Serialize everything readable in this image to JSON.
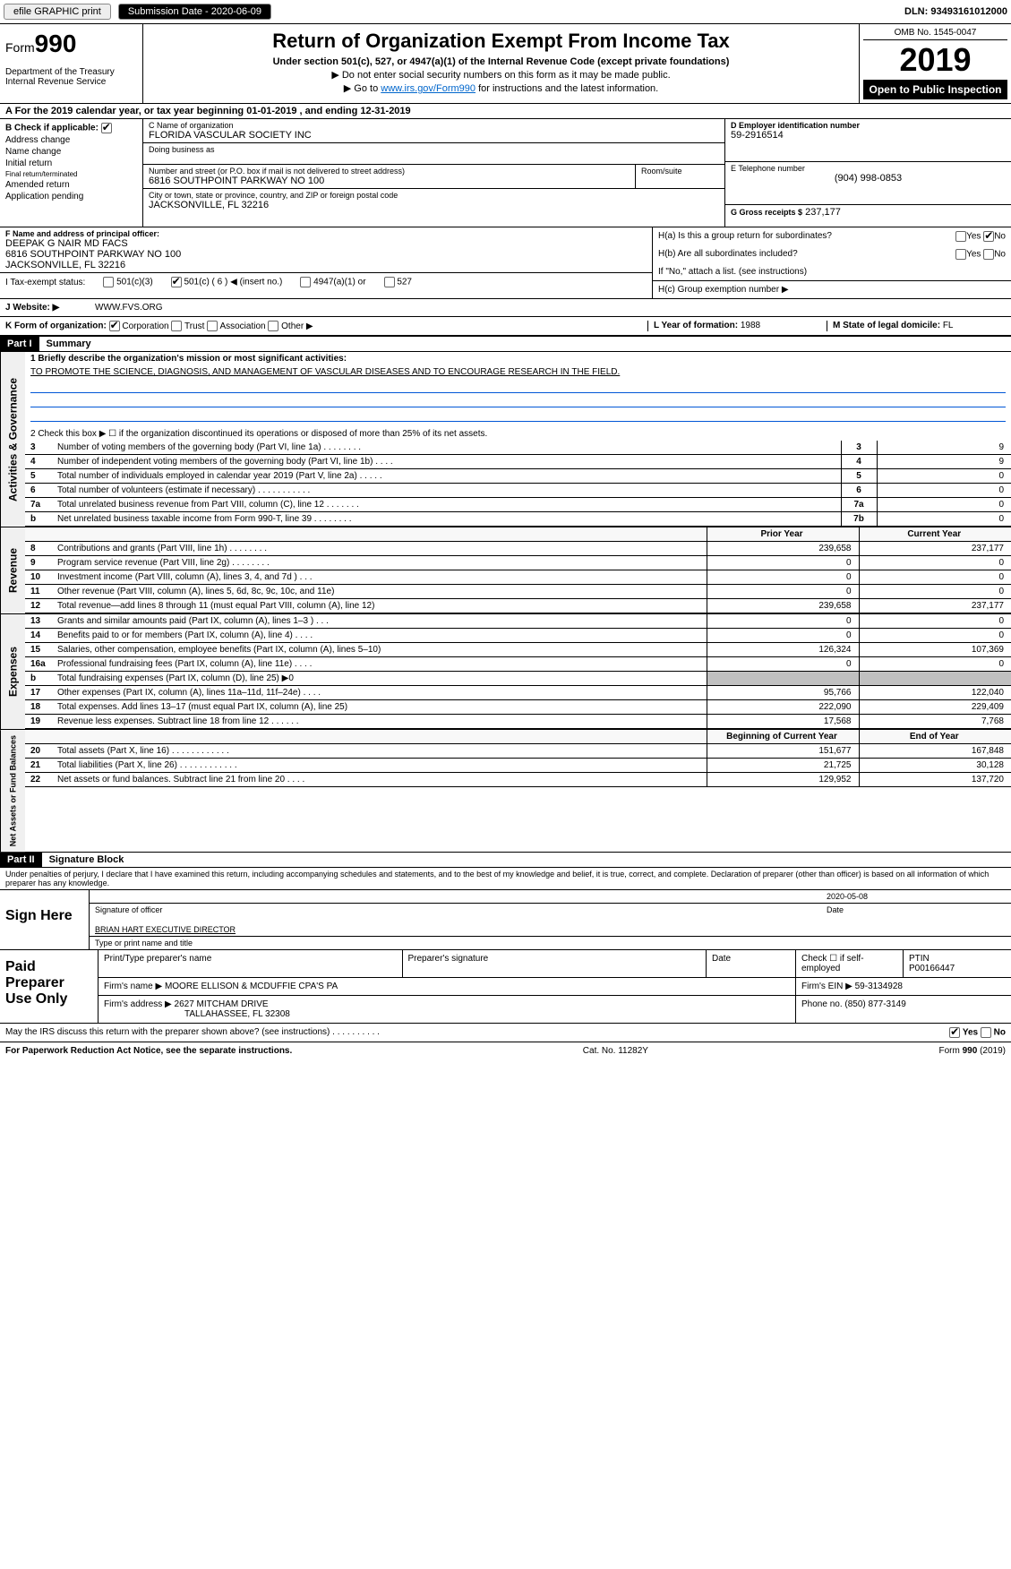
{
  "topbar": {
    "efile_label": "efile GRAPHIC print",
    "submission_label": "Submission Date - 2020-06-09",
    "dln": "DLN: 93493161012000"
  },
  "header": {
    "form_prefix": "Form",
    "form_number": "990",
    "dept": "Department of the Treasury",
    "irs": "Internal Revenue Service",
    "title": "Return of Organization Exempt From Income Tax",
    "subtitle": "Under section 501(c), 527, or 4947(a)(1) of the Internal Revenue Code (except private foundations)",
    "note1": "▶ Do not enter social security numbers on this form as it may be made public.",
    "note2_pre": "▶ Go to ",
    "note2_link": "www.irs.gov/Form990",
    "note2_post": " for instructions and the latest information.",
    "omb": "OMB No. 1545-0047",
    "year": "2019",
    "open": "Open to Public Inspection"
  },
  "lineA": {
    "prefix": "A   For the 2019 calendar year, or tax year beginning ",
    "begin": "01-01-2019",
    "mid": "   , and ending ",
    "end": "12-31-2019"
  },
  "blockB": {
    "label": "B  Check if applicable:",
    "opts": [
      "Address change",
      "Name change",
      "Initial return",
      "Final return/terminated",
      "Amended return",
      "Application pending"
    ],
    "checked": 0
  },
  "blockC": {
    "name_lbl": "C Name of organization",
    "name": "FLORIDA VASCULAR SOCIETY INC",
    "dba_lbl": "Doing business as",
    "dba": "",
    "street_lbl": "Number and street (or P.O. box if mail is not delivered to street address)",
    "street": "6816 SOUTHPOINT PARKWAY NO 100",
    "room_lbl": "Room/suite",
    "city_lbl": "City or town, state or province, country, and ZIP or foreign postal code",
    "city": "JACKSONVILLE, FL  32216"
  },
  "blockD": {
    "lbl": "D Employer identification number",
    "val": "59-2916514"
  },
  "blockE": {
    "lbl": "E Telephone number",
    "val": "(904) 998-0853"
  },
  "blockG": {
    "lbl": "G Gross receipts $",
    "val": "237,177"
  },
  "blockF": {
    "lbl": "F Name and address of principal officer:",
    "name": "DEEPAK G NAIR MD FACS",
    "addr1": "6816 SOUTHPOINT PARKWAY NO 100",
    "addr2": "JACKSONVILLE, FL  32216"
  },
  "blockH": {
    "ha_lbl": "H(a)    Is this a group return for subordinates?",
    "ha_yes": "Yes",
    "ha_no": "No",
    "hb_lbl": "H(b)    Are all subordinates included?",
    "hb_note": "If \"No,\" attach a list. (see instructions)",
    "hc_lbl": "H(c)    Group exemption number ▶"
  },
  "status": {
    "lbl": "I    Tax-exempt status:",
    "o1": "501(c)(3)",
    "o2": "501(c) ( 6 ) ◀ (insert no.)",
    "o3": "4947(a)(1) or",
    "o4": "527"
  },
  "website": {
    "lbl": "J   Website: ▶",
    "val": "WWW.FVS.ORG"
  },
  "korg": {
    "lbl": "K Form of organization:",
    "opts": [
      "Corporation",
      "Trust",
      "Association",
      "Other ▶"
    ],
    "l_lbl": "L Year of formation:",
    "l_val": "1988",
    "m_lbl": "M State of legal domicile:",
    "m_val": "FL"
  },
  "part1": {
    "num": "Part I",
    "title": "Summary"
  },
  "summary": {
    "sec1_label": "Activities & Governance",
    "line1_lbl": "1  Briefly describe the organization's mission or most significant activities:",
    "line1_val": "TO PROMOTE THE SCIENCE, DIAGNOSIS, AND MANAGEMENT OF VASCULAR DISEASES AND TO ENCOURAGE RESEARCH IN THE FIELD.",
    "line2": "2   Check this box ▶ ☐ if the organization discontinued its operations or disposed of more than 25% of its net assets.",
    "rows_small": [
      {
        "n": "3",
        "d": "Number of voting members of the governing body (Part VI, line 1a)  .    .    .    .    .    .    .    .",
        "box": "3",
        "v": "9"
      },
      {
        "n": "4",
        "d": "Number of independent voting members of the governing body (Part VI, line 1b)   .    .    .    .",
        "box": "4",
        "v": "9"
      },
      {
        "n": "5",
        "d": "Total number of individuals employed in calendar year 2019 (Part V, line 2a)  .    .    .    .    .",
        "box": "5",
        "v": "0"
      },
      {
        "n": "6",
        "d": "Total number of volunteers (estimate if necessary)   .    .    .    .    .    .    .    .    .    .    .",
        "box": "6",
        "v": "0"
      },
      {
        "n": "7a",
        "d": "Total unrelated business revenue from Part VIII, column (C), line 12  .    .    .    .    .    .    .",
        "box": "7a",
        "v": "0"
      },
      {
        "n": "b",
        "d": "Net unrelated business taxable income from Form 990-T, line 39  .    .    .    .    .    .    .    .",
        "box": "7b",
        "v": "0"
      }
    ],
    "hdr_prior": "Prior Year",
    "hdr_curr": "Current Year",
    "sec_rev": "Revenue",
    "rows_rev": [
      {
        "n": "8",
        "d": "Contributions and grants (Part VIII, line 1h)  .    .    .    .    .    .    .    .",
        "p": "239,658",
        "c": "237,177"
      },
      {
        "n": "9",
        "d": "Program service revenue (Part VIII, line 2g)   .    .    .    .    .    .    .    .",
        "p": "0",
        "c": "0"
      },
      {
        "n": "10",
        "d": "Investment income (Part VIII, column (A), lines 3, 4, and 7d )  .    .    .",
        "p": "0",
        "c": "0"
      },
      {
        "n": "11",
        "d": "Other revenue (Part VIII, column (A), lines 5, 6d, 8c, 9c, 10c, and 11e)",
        "p": "0",
        "c": "0"
      },
      {
        "n": "12",
        "d": "Total revenue—add lines 8 through 11 (must equal Part VIII, column (A), line 12)",
        "p": "239,658",
        "c": "237,177"
      }
    ],
    "sec_exp": "Expenses",
    "rows_exp": [
      {
        "n": "13",
        "d": "Grants and similar amounts paid (Part IX, column (A), lines 1–3 )  .    .    .",
        "p": "0",
        "c": "0"
      },
      {
        "n": "14",
        "d": "Benefits paid to or for members (Part IX, column (A), line 4)  .    .    .    .",
        "p": "0",
        "c": "0"
      },
      {
        "n": "15",
        "d": "Salaries, other compensation, employee benefits (Part IX, column (A), lines 5–10)",
        "p": "126,324",
        "c": "107,369"
      },
      {
        "n": "16a",
        "d": "Professional fundraising fees (Part IX, column (A), line 11e)  .    .    .    .",
        "p": "0",
        "c": "0"
      },
      {
        "n": "b",
        "d": "Total fundraising expenses (Part IX, column (D), line 25) ▶0",
        "p": "GREY",
        "c": "GREY"
      },
      {
        "n": "17",
        "d": "Other expenses (Part IX, column (A), lines 11a–11d, 11f–24e)  .    .    .    .",
        "p": "95,766",
        "c": "122,040"
      },
      {
        "n": "18",
        "d": "Total expenses. Add lines 13–17 (must equal Part IX, column (A), line 25)",
        "p": "222,090",
        "c": "229,409"
      },
      {
        "n": "19",
        "d": "Revenue less expenses. Subtract line 18 from line 12  .    .    .    .    .    .",
        "p": "17,568",
        "c": "7,768"
      }
    ],
    "sec_na": "Net Assets or Fund Balances",
    "hdr_boy": "Beginning of Current Year",
    "hdr_eoy": "End of Year",
    "rows_na": [
      {
        "n": "20",
        "d": "Total assets (Part X, line 16)   .    .    .    .    .    .    .    .    .    .    .    .",
        "p": "151,677",
        "c": "167,848"
      },
      {
        "n": "21",
        "d": "Total liabilities (Part X, line 26)  .    .    .    .    .    .    .    .    .    .    .    .",
        "p": "21,725",
        "c": "30,128"
      },
      {
        "n": "22",
        "d": "Net assets or fund balances. Subtract line 21 from line 20   .    .    .    .",
        "p": "129,952",
        "c": "137,720"
      }
    ]
  },
  "part2": {
    "num": "Part II",
    "title": "Signature Block"
  },
  "perjury": "Under penalties of perjury, I declare that I have examined this return, including accompanying schedules and statements, and to the best of my knowledge and belief, it is true, correct, and complete. Declaration of preparer (other than officer) is based on all information of which preparer has any knowledge.",
  "sign": {
    "label": "Sign Here",
    "sig_of_officer": "Signature of officer",
    "date": "2020-05-08",
    "date_lbl": "Date",
    "name": "BRIAN HART  EXECUTIVE DIRECTOR",
    "name_lbl": "Type or print name and title"
  },
  "paid": {
    "label": "Paid Preparer Use Only",
    "h1": "Print/Type preparer's name",
    "h2": "Preparer's signature",
    "h3": "Date",
    "h4_chk": "Check ☐ if self-employed",
    "h5": "PTIN",
    "ptin": "P00166447",
    "firm_name_lbl": "Firm's name    ▶",
    "firm_name": "MOORE ELLISON & MCDUFFIE CPA'S PA",
    "firm_ein_lbl": "Firm's EIN ▶",
    "firm_ein": "59-3134928",
    "firm_addr_lbl": "Firm's address ▶",
    "firm_addr1": "2627 MITCHAM DRIVE",
    "firm_addr2": "TALLAHASSEE, FL  32308",
    "phone_lbl": "Phone no.",
    "phone": "(850) 877-3149"
  },
  "discuss": {
    "txt": "May the IRS discuss this return with the preparer shown above? (see instructions)   .    .    .    .    .    .    .    .    .    .",
    "yes": "Yes",
    "no": "No"
  },
  "footer": {
    "left": "For Paperwork Reduction Act Notice, see the separate instructions.",
    "mid": "Cat. No. 11282Y",
    "right": "Form 990 (2019)"
  }
}
